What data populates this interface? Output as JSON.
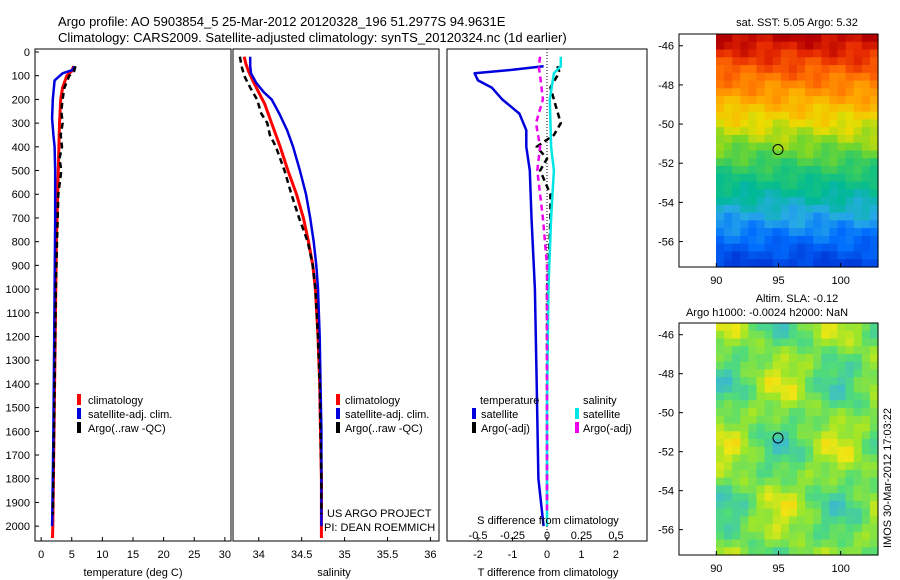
{
  "header": {
    "line1": "Argo profile: AO 5903854_5 25-Mar-2012 20120328_196 51.2977S 94.9631E",
    "line2": "Climatology: CARS2009. Satellite-adjusted climatology: synTS_20120324.nc (1d earlier)"
  },
  "colors": {
    "climatology": "#ff0000",
    "satellite": "#0000dd",
    "argo": "#000000",
    "sat_salinity": "#00e5e5",
    "argo_adj_salinity": "#ee00ee"
  },
  "depth_axis": {
    "ylim": [
      0,
      2050
    ],
    "ticks": [
      "0",
      "100",
      "200",
      "300",
      "400",
      "500",
      "600",
      "700",
      "800",
      "900",
      "1000",
      "1100",
      "1200",
      "1300",
      "1400",
      "1500",
      "1600",
      "1700",
      "1800",
      "1900",
      "2000"
    ]
  },
  "chart_data": [
    {
      "type": "line",
      "xlabel": "temperature (deg C)",
      "xlim": [
        -1,
        31
      ],
      "xticks": [
        "0",
        "5",
        "10",
        "15",
        "20",
        "25",
        "30"
      ],
      "legend": [
        "climatology",
        "satellite-adj. clim.",
        "Argo(..raw -QC)"
      ],
      "series": [
        {
          "role": "climatology",
          "points": [
            [
              5.3,
              60
            ],
            [
              5.0,
              80
            ],
            [
              4.2,
              100
            ],
            [
              3.5,
              150
            ],
            [
              3.2,
              200
            ],
            [
              3.0,
              300
            ],
            [
              2.9,
              400
            ],
            [
              2.8,
              500
            ],
            [
              2.7,
              600
            ],
            [
              2.6,
              700
            ],
            [
              2.5,
              800
            ],
            [
              2.45,
              900
            ],
            [
              2.4,
              1000
            ],
            [
              2.3,
              1200
            ],
            [
              2.2,
              1400
            ],
            [
              2.1,
              1600
            ],
            [
              2.0,
              1800
            ],
            [
              1.9,
              2000
            ],
            [
              1.85,
              2050
            ]
          ]
        },
        {
          "role": "satellite",
          "points": [
            [
              5.4,
              60
            ],
            [
              5.2,
              75
            ],
            [
              3.5,
              90
            ],
            [
              2.2,
              120
            ],
            [
              1.9,
              200
            ],
            [
              1.8,
              280
            ],
            [
              2.0,
              350
            ],
            [
              2.2,
              400
            ],
            [
              2.3,
              500
            ],
            [
              2.3,
              700
            ],
            [
              2.2,
              1000
            ],
            [
              2.1,
              1300
            ],
            [
              2.0,
              1600
            ],
            [
              1.9,
              1800
            ],
            [
              1.8,
              2000
            ]
          ]
        },
        {
          "role": "argo",
          "points": [
            [
              5.6,
              60
            ],
            [
              5.4,
              80
            ],
            [
              4.6,
              100
            ],
            [
              3.8,
              150
            ],
            [
              3.5,
              200
            ],
            [
              3.3,
              250
            ],
            [
              3.5,
              300
            ],
            [
              3.2,
              350
            ],
            [
              3.4,
              400
            ],
            [
              3.0,
              450
            ],
            [
              3.3,
              500
            ],
            [
              2.8,
              600
            ],
            [
              2.7,
              700
            ],
            [
              2.6,
              800
            ],
            [
              2.5,
              900
            ],
            [
              2.4,
              1000
            ],
            [
              2.3,
              1200
            ],
            [
              2.2,
              1400
            ],
            [
              2.1,
              1600
            ],
            [
              2.0,
              1800
            ],
            [
              1.9,
              1950
            ]
          ]
        }
      ]
    },
    {
      "type": "line",
      "xlabel": "salinity",
      "xlim": [
        33.7,
        36.1
      ],
      "xticks": [
        "34",
        "34.5",
        "35",
        "35.5",
        "36"
      ],
      "legend": [
        "climatology",
        "satellite-adj. clim.",
        "Argo(..raw -QC)"
      ],
      "series": [
        {
          "role": "climatology",
          "points": [
            [
              33.83,
              20
            ],
            [
              33.85,
              50
            ],
            [
              33.88,
              80
            ],
            [
              33.93,
              120
            ],
            [
              34.0,
              170
            ],
            [
              34.07,
              220
            ],
            [
              34.15,
              300
            ],
            [
              34.25,
              400
            ],
            [
              34.34,
              500
            ],
            [
              34.44,
              600
            ],
            [
              34.52,
              700
            ],
            [
              34.58,
              800
            ],
            [
              34.63,
              900
            ],
            [
              34.66,
              1000
            ],
            [
              34.69,
              1200
            ],
            [
              34.71,
              1400
            ],
            [
              34.72,
              1600
            ],
            [
              34.73,
              1800
            ],
            [
              34.73,
              2050
            ]
          ]
        },
        {
          "role": "satellite",
          "points": [
            [
              33.9,
              20
            ],
            [
              33.9,
              60
            ],
            [
              33.91,
              90
            ],
            [
              33.97,
              130
            ],
            [
              34.06,
              170
            ],
            [
              34.15,
              200
            ],
            [
              34.24,
              260
            ],
            [
              34.33,
              330
            ],
            [
              34.4,
              400
            ],
            [
              34.48,
              500
            ],
            [
              34.55,
              600
            ],
            [
              34.6,
              700
            ],
            [
              34.64,
              800
            ],
            [
              34.67,
              900
            ],
            [
              34.69,
              1000
            ],
            [
              34.71,
              1200
            ],
            [
              34.72,
              1400
            ],
            [
              34.73,
              1600
            ],
            [
              34.73,
              1800
            ],
            [
              34.73,
              2000
            ]
          ]
        },
        {
          "role": "argo",
          "points": [
            [
              33.78,
              20
            ],
            [
              33.8,
              60
            ],
            [
              33.83,
              100
            ],
            [
              33.9,
              150
            ],
            [
              33.98,
              200
            ],
            [
              34.03,
              260
            ],
            [
              34.1,
              300
            ],
            [
              34.13,
              350
            ],
            [
              34.2,
              400
            ],
            [
              34.25,
              450
            ],
            [
              34.3,
              500
            ],
            [
              34.38,
              600
            ],
            [
              34.47,
              700
            ],
            [
              34.57,
              800
            ],
            [
              34.63,
              900
            ],
            [
              34.66,
              1000
            ],
            [
              34.69,
              1200
            ],
            [
              34.71,
              1400
            ],
            [
              34.72,
              1600
            ],
            [
              34.73,
              1800
            ],
            [
              34.73,
              1950
            ]
          ]
        }
      ]
    },
    {
      "type": "line",
      "xlabel": "T difference from climatology",
      "xlim": [
        -2.9,
        2.9
      ],
      "xticks": [
        "-2",
        "-1",
        "0",
        "1",
        "2"
      ],
      "secondary_xlabel": "S difference from climatology",
      "secondary_xlim": [
        -0.725,
        0.725
      ],
      "secondary_xticks": [
        "-0.5",
        "-0.25",
        "0",
        "0.25",
        "0.5"
      ],
      "legend_titles": [
        "temperature",
        "salinity"
      ],
      "legend": [
        "satellite",
        "Argo(-adj)",
        "satellite",
        "Argo(-adj)"
      ],
      "series": [
        {
          "role": "temp_satellite",
          "points": [
            [
              -0.1,
              60
            ],
            [
              -1.0,
              75
            ],
            [
              -2.1,
              90
            ],
            [
              -2.0,
              120
            ],
            [
              -1.6,
              150
            ],
            [
              -1.3,
              200
            ],
            [
              -0.8,
              260
            ],
            [
              -0.6,
              330
            ],
            [
              -0.6,
              400
            ],
            [
              -0.5,
              500
            ],
            [
              -0.45,
              700
            ],
            [
              -0.35,
              1000
            ],
            [
              -0.3,
              1400
            ],
            [
              -0.25,
              1800
            ],
            [
              -0.1,
              2000
            ]
          ]
        },
        {
          "role": "temp_argo",
          "points": [
            [
              0.3,
              60
            ],
            [
              0.35,
              80
            ],
            [
              0.3,
              100
            ],
            [
              0.1,
              150
            ],
            [
              0.2,
              200
            ],
            [
              0.3,
              250
            ],
            [
              0.4,
              300
            ],
            [
              0.2,
              350
            ],
            [
              -0.3,
              400
            ],
            [
              0.0,
              450
            ],
            [
              -0.2,
              500
            ],
            [
              0.1,
              600
            ],
            [
              0.1,
              700
            ],
            [
              0.05,
              900
            ],
            [
              0.0,
              1000
            ],
            [
              0.0,
              1300
            ],
            [
              0.0,
              1600
            ],
            [
              0.0,
              1900
            ]
          ]
        },
        {
          "role": "sal_satellite",
          "points": [
            [
              0.1,
              20
            ],
            [
              0.1,
              60
            ],
            [
              0.05,
              90
            ],
            [
              0.02,
              200
            ],
            [
              0.03,
              400
            ],
            [
              0.05,
              500
            ],
            [
              0.03,
              700
            ],
            [
              0.01,
              1000
            ],
            [
              0.0,
              1500
            ],
            [
              0.0,
              2000
            ]
          ]
        },
        {
          "role": "sal_argo",
          "points": [
            [
              -0.05,
              20
            ],
            [
              -0.06,
              60
            ],
            [
              -0.05,
              100
            ],
            [
              -0.03,
              200
            ],
            [
              -0.08,
              300
            ],
            [
              -0.05,
              400
            ],
            [
              -0.07,
              500
            ],
            [
              -0.03,
              700
            ],
            [
              0.0,
              900
            ],
            [
              0.0,
              1200
            ],
            [
              0.0,
              1600
            ],
            [
              0.0,
              1950
            ]
          ]
        }
      ]
    },
    {
      "type": "heatmap",
      "title": "sat. SST: 5.05 Argo: 5.32",
      "xlim": [
        87,
        103
      ],
      "ylim": [
        -57.3,
        -45.4
      ],
      "xticks": [
        "90",
        "95",
        "100"
      ],
      "yticks": [
        "-46",
        "-48",
        "-50",
        "-52",
        "-54",
        "-56"
      ],
      "marker": {
        "lon": 94.96,
        "lat": -51.3
      }
    },
    {
      "type": "heatmap",
      "title": "Altim. SLA: -0.12",
      "subtitle": "Argo h1000: -0.0024 h2000: NaN",
      "xlim": [
        87,
        103
      ],
      "ylim": [
        -57.3,
        -45.4
      ],
      "xticks": [
        "90",
        "95",
        "100"
      ],
      "yticks": [
        "-46",
        "-48",
        "-50",
        "-52",
        "-54",
        "-56"
      ],
      "marker": {
        "lon": 94.96,
        "lat": -51.3
      }
    }
  ],
  "credit": {
    "line1": "US ARGO PROJECT",
    "line2": "PI: DEAN ROEMMICH"
  },
  "stamp": "IMOS 30-Mar-2012 17:03:22"
}
